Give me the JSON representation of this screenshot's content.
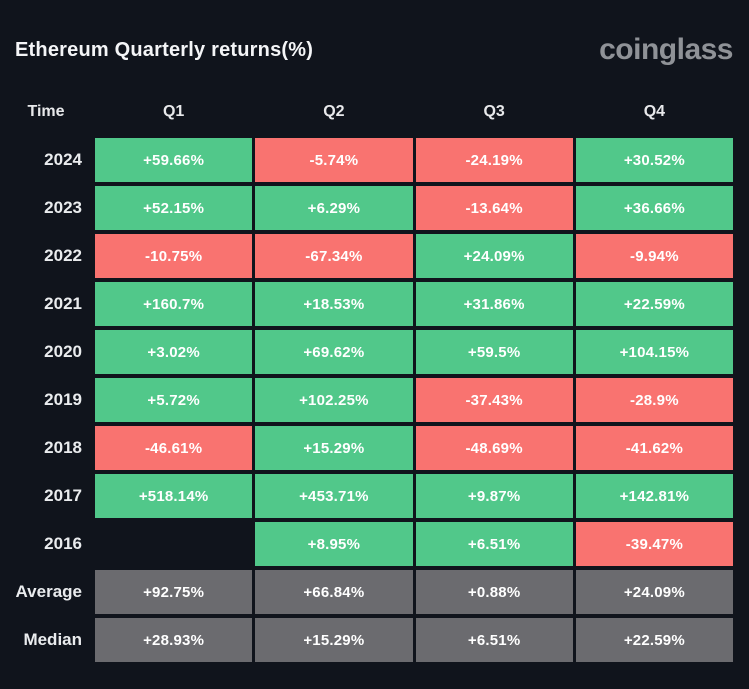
{
  "header": {
    "title": "Ethereum Quarterly returns(%)",
    "logo_text": "coinglass"
  },
  "colors": {
    "background": "#10141c",
    "positive": "#51c88a",
    "negative": "#f97370",
    "neutral": "#6b6b6f"
  },
  "table": {
    "columns": [
      "Time",
      "Q1",
      "Q2",
      "Q3",
      "Q4"
    ],
    "rows": [
      {
        "label": "2024",
        "cells": [
          {
            "text": "+59.66%",
            "type": "positive"
          },
          {
            "text": "-5.74%",
            "type": "negative"
          },
          {
            "text": "-24.19%",
            "type": "negative"
          },
          {
            "text": "+30.52%",
            "type": "positive"
          }
        ]
      },
      {
        "label": "2023",
        "cells": [
          {
            "text": "+52.15%",
            "type": "positive"
          },
          {
            "text": "+6.29%",
            "type": "positive"
          },
          {
            "text": "-13.64%",
            "type": "negative"
          },
          {
            "text": "+36.66%",
            "type": "positive"
          }
        ]
      },
      {
        "label": "2022",
        "cells": [
          {
            "text": "-10.75%",
            "type": "negative"
          },
          {
            "text": "-67.34%",
            "type": "negative"
          },
          {
            "text": "+24.09%",
            "type": "positive"
          },
          {
            "text": "-9.94%",
            "type": "negative"
          }
        ]
      },
      {
        "label": "2021",
        "cells": [
          {
            "text": "+160.7%",
            "type": "positive"
          },
          {
            "text": "+18.53%",
            "type": "positive"
          },
          {
            "text": "+31.86%",
            "type": "positive"
          },
          {
            "text": "+22.59%",
            "type": "positive"
          }
        ]
      },
      {
        "label": "2020",
        "cells": [
          {
            "text": "+3.02%",
            "type": "positive"
          },
          {
            "text": "+69.62%",
            "type": "positive"
          },
          {
            "text": "+59.5%",
            "type": "positive"
          },
          {
            "text": "+104.15%",
            "type": "positive"
          }
        ]
      },
      {
        "label": "2019",
        "cells": [
          {
            "text": "+5.72%",
            "type": "positive"
          },
          {
            "text": "+102.25%",
            "type": "positive"
          },
          {
            "text": "-37.43%",
            "type": "negative"
          },
          {
            "text": "-28.9%",
            "type": "negative"
          }
        ]
      },
      {
        "label": "2018",
        "cells": [
          {
            "text": "-46.61%",
            "type": "negative"
          },
          {
            "text": "+15.29%",
            "type": "positive"
          },
          {
            "text": "-48.69%",
            "type": "negative"
          },
          {
            "text": "-41.62%",
            "type": "negative"
          }
        ]
      },
      {
        "label": "2017",
        "cells": [
          {
            "text": "+518.14%",
            "type": "positive"
          },
          {
            "text": "+453.71%",
            "type": "positive"
          },
          {
            "text": "+9.87%",
            "type": "positive"
          },
          {
            "text": "+142.81%",
            "type": "positive"
          }
        ]
      },
      {
        "label": "2016",
        "cells": [
          {
            "text": "",
            "type": "empty"
          },
          {
            "text": "+8.95%",
            "type": "positive"
          },
          {
            "text": "+6.51%",
            "type": "positive"
          },
          {
            "text": "-39.47%",
            "type": "negative"
          }
        ]
      },
      {
        "label": "Average",
        "cells": [
          {
            "text": "+92.75%",
            "type": "neutral"
          },
          {
            "text": "+66.84%",
            "type": "neutral"
          },
          {
            "text": "+0.88%",
            "type": "neutral"
          },
          {
            "text": "+24.09%",
            "type": "neutral"
          }
        ]
      },
      {
        "label": "Median",
        "cells": [
          {
            "text": "+28.93%",
            "type": "neutral"
          },
          {
            "text": "+15.29%",
            "type": "neutral"
          },
          {
            "text": "+6.51%",
            "type": "neutral"
          },
          {
            "text": "+22.59%",
            "type": "neutral"
          }
        ]
      }
    ]
  },
  "chart_data": {
    "type": "heatmap",
    "title": "Ethereum Quarterly returns(%)",
    "columns": [
      "Q1",
      "Q2",
      "Q3",
      "Q4"
    ],
    "rows": [
      "2024",
      "2023",
      "2022",
      "2021",
      "2020",
      "2019",
      "2018",
      "2017",
      "2016",
      "Average",
      "Median"
    ],
    "values_pct": [
      [
        59.66,
        -5.74,
        -24.19,
        30.52
      ],
      [
        52.15,
        6.29,
        -13.64,
        36.66
      ],
      [
        -10.75,
        -67.34,
        24.09,
        -9.94
      ],
      [
        160.7,
        18.53,
        31.86,
        22.59
      ],
      [
        3.02,
        69.62,
        59.5,
        104.15
      ],
      [
        5.72,
        102.25,
        -37.43,
        -28.9
      ],
      [
        -46.61,
        15.29,
        -48.69,
        -41.62
      ],
      [
        518.14,
        453.71,
        9.87,
        142.81
      ],
      [
        null,
        8.95,
        6.51,
        -39.47
      ],
      [
        92.75,
        66.84,
        0.88,
        24.09
      ],
      [
        28.93,
        15.29,
        6.51,
        22.59
      ]
    ],
    "color_coding": "green=positive return, red=negative return, gray=summary rows (Average/Median)",
    "legend_position": "none",
    "grid": false
  }
}
